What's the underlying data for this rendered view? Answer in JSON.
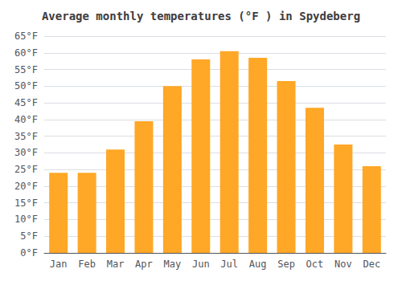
{
  "chart_data": {
    "type": "bar",
    "title": "Average monthly temperatures (°F ) in Spydeberg",
    "categories": [
      "Jan",
      "Feb",
      "Mar",
      "Apr",
      "May",
      "Jun",
      "Jul",
      "Aug",
      "Sep",
      "Oct",
      "Nov",
      "Dec"
    ],
    "values": [
      24,
      24,
      31,
      39.5,
      50,
      58,
      60.5,
      58.5,
      51.5,
      43.5,
      32.5,
      26
    ],
    "color": "#FFA726",
    "ylim": [
      0,
      65
    ],
    "yticks": [
      {
        "value": 0,
        "label": "0°F"
      },
      {
        "value": 5,
        "label": "5°F"
      },
      {
        "value": 10,
        "label": "10°F"
      },
      {
        "value": 15,
        "label": "15°F"
      },
      {
        "value": 20,
        "label": "20°F"
      },
      {
        "value": 25,
        "label": "25°F"
      },
      {
        "value": 30,
        "label": "30°F"
      },
      {
        "value": 35,
        "label": "35°F"
      },
      {
        "value": 40,
        "label": "40°F"
      },
      {
        "value": 45,
        "label": "45°F"
      },
      {
        "value": 50,
        "label": "50°F"
      },
      {
        "value": 55,
        "label": "55°F"
      },
      {
        "value": 60,
        "label": "60°F"
      },
      {
        "value": 65,
        "label": "65°F"
      }
    ],
    "grid": true
  }
}
